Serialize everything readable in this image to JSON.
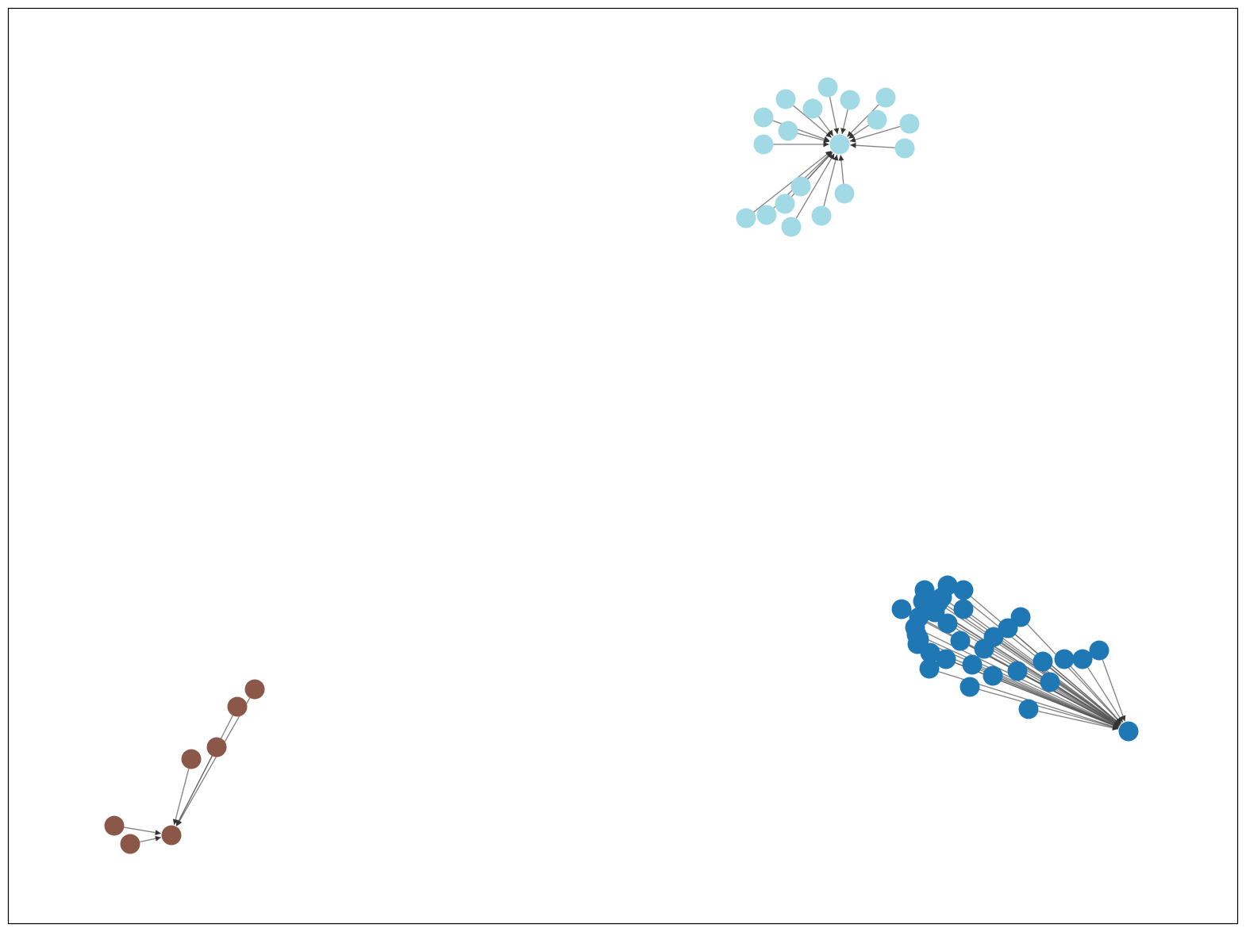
{
  "graph": {
    "directed": true,
    "components": [
      {
        "id": "cluster-light-blue",
        "color": "#a1d9e5",
        "hub": "h",
        "nodes": [
          "h",
          "a1",
          "a2",
          "a3",
          "a4",
          "a5",
          "a6",
          "a7",
          "a8",
          "a9",
          "a10",
          "a11",
          "a12",
          "a13",
          "a14",
          "a15",
          "a16",
          "a17",
          "a18"
        ]
      },
      {
        "id": "cluster-dark-blue",
        "color": "#1f77b4",
        "hub": "h",
        "nodes": [
          "h",
          "b1",
          "b2",
          "b3",
          "b4",
          "b5",
          "b6",
          "b7",
          "b8",
          "b9",
          "b10",
          "b11",
          "b12",
          "b13",
          "b14",
          "b15",
          "b16",
          "b17",
          "b18",
          "b19",
          "b20",
          "b21",
          "b22",
          "b23",
          "b24",
          "b25",
          "b26",
          "b27",
          "b28",
          "b29",
          "b30",
          "b31",
          "b32",
          "b33",
          "b34"
        ]
      },
      {
        "id": "cluster-brown",
        "color": "#8b5749",
        "hub": "h",
        "nodes": [
          "h",
          "c1",
          "c2",
          "c3",
          "c4",
          "c5",
          "c6"
        ]
      }
    ]
  }
}
